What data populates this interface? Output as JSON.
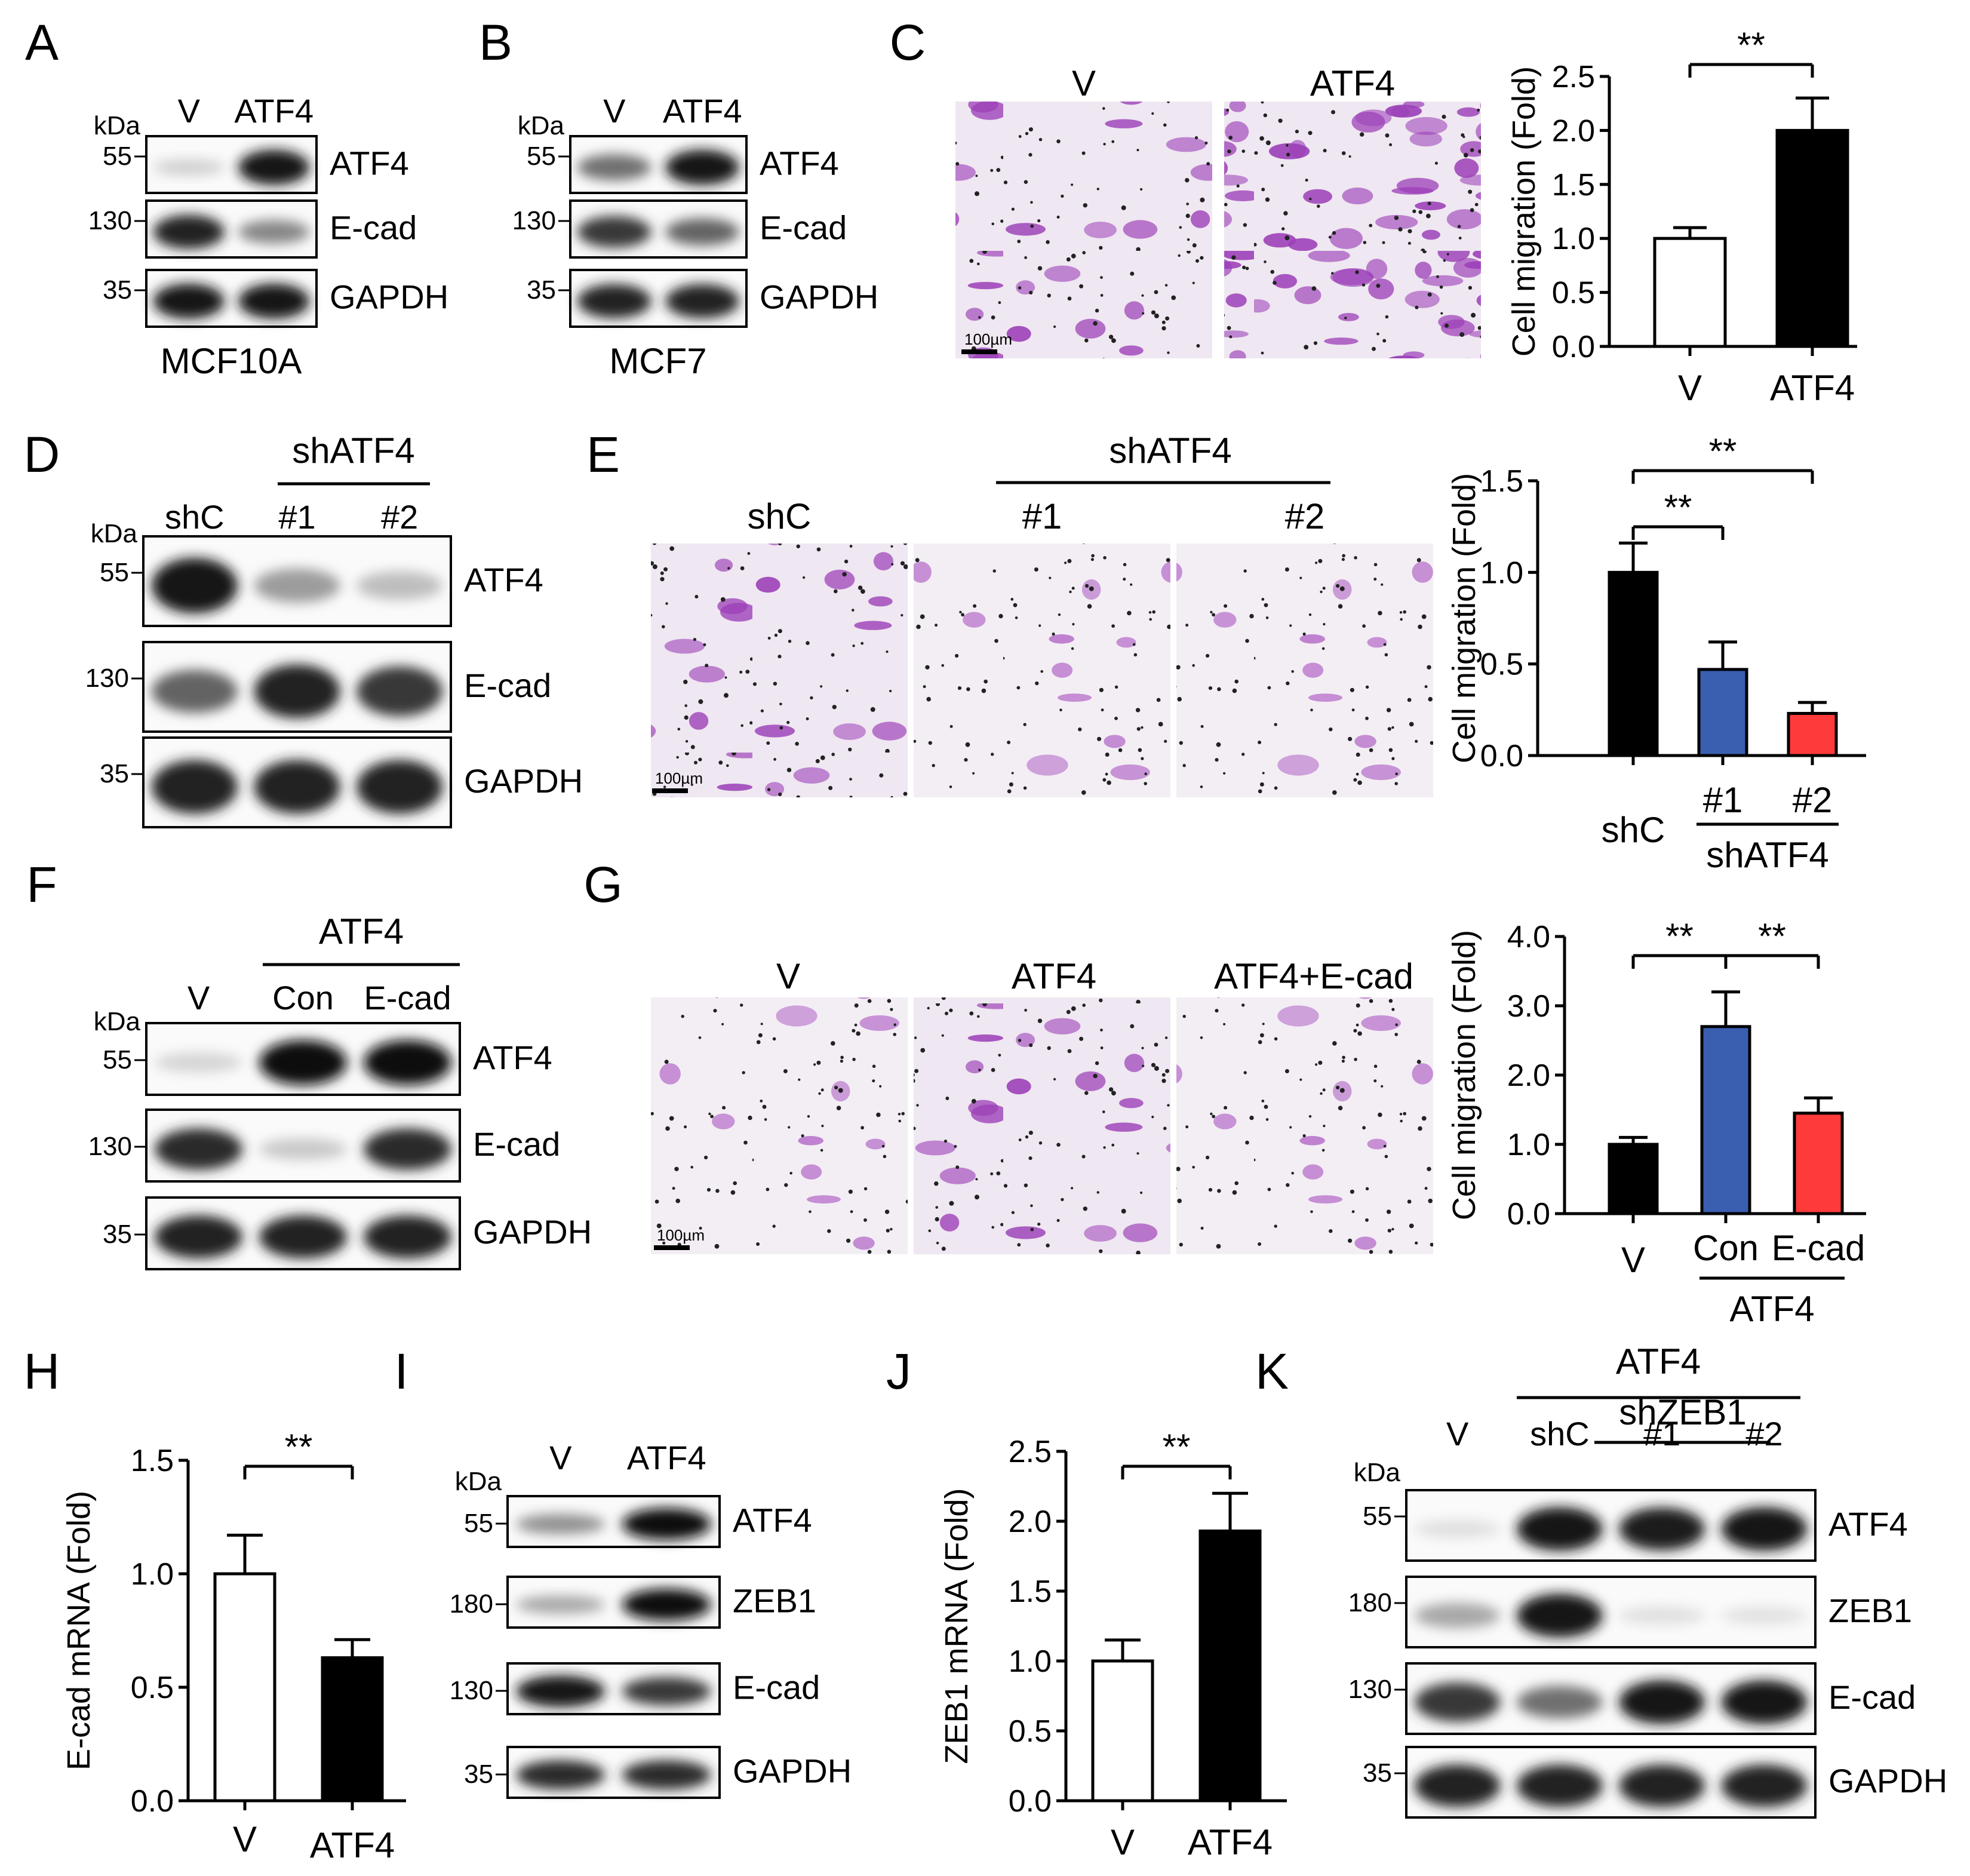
{
  "panels": {
    "A": "A",
    "B": "B",
    "C": "C",
    "D": "D",
    "E": "E",
    "F": "F",
    "G": "G",
    "H": "H",
    "I": "I",
    "J": "J",
    "K": "K"
  },
  "common": {
    "kda": "kDa",
    "sig": "**",
    "scale": "100µm",
    "fold_ylabel": "Cell migration (Fold)"
  },
  "A": {
    "lanes": [
      "V",
      "ATF4"
    ],
    "cell": "MCF10A",
    "rows": [
      {
        "label": "ATF4",
        "marker": "55"
      },
      {
        "label": "E-cad",
        "marker": "130"
      },
      {
        "label": "GAPDH",
        "marker": "35"
      }
    ],
    "intensity": [
      [
        0.12,
        0.95
      ],
      [
        0.9,
        0.45
      ],
      [
        0.95,
        0.95
      ]
    ]
  },
  "B": {
    "lanes": [
      "V",
      "ATF4"
    ],
    "cell": "MCF7",
    "rows": [
      {
        "label": "ATF4",
        "marker": "55"
      },
      {
        "label": "E-cad",
        "marker": "130"
      },
      {
        "label": "GAPDH",
        "marker": "35"
      }
    ],
    "intensity": [
      [
        0.55,
        0.95
      ],
      [
        0.8,
        0.6
      ],
      [
        0.9,
        0.9
      ]
    ]
  },
  "C": {
    "image_labels": [
      "V",
      "ATF4"
    ]
  },
  "D": {
    "lanes": [
      "shC",
      "#1",
      "#2"
    ],
    "group": "shATF4",
    "rows": [
      {
        "label": "ATF4",
        "marker": "55"
      },
      {
        "label": "E-cad",
        "marker": "130"
      },
      {
        "label": "GAPDH",
        "marker": "35"
      }
    ],
    "intensity": [
      [
        0.95,
        0.35,
        0.2
      ],
      [
        0.6,
        0.9,
        0.8
      ],
      [
        0.9,
        0.9,
        0.9
      ]
    ]
  },
  "E": {
    "group": "shATF4",
    "image_labels": [
      "shC",
      "#1",
      "#2"
    ]
  },
  "F": {
    "lanes": [
      "V",
      "Con",
      "E-cad"
    ],
    "group": "ATF4",
    "rows": [
      {
        "label": "ATF4",
        "marker": "55"
      },
      {
        "label": "E-cad",
        "marker": "130"
      },
      {
        "label": "GAPDH",
        "marker": "35"
      }
    ],
    "intensity": [
      [
        0.1,
        0.97,
        0.97
      ],
      [
        0.85,
        0.15,
        0.85
      ],
      [
        0.9,
        0.9,
        0.9
      ]
    ]
  },
  "G": {
    "image_labels": [
      "V",
      "ATF4",
      "ATF4+E-cad"
    ]
  },
  "I": {
    "lanes": [
      "V",
      "ATF4"
    ],
    "rows": [
      {
        "label": "ATF4",
        "marker": "55"
      },
      {
        "label": "ZEB1",
        "marker": "180"
      },
      {
        "label": "E-cad",
        "marker": "130"
      },
      {
        "label": "GAPDH",
        "marker": "35"
      }
    ],
    "intensity": [
      [
        0.4,
        0.97
      ],
      [
        0.3,
        0.97
      ],
      [
        0.95,
        0.8
      ],
      [
        0.85,
        0.85
      ]
    ]
  },
  "K": {
    "lanes": [
      "V",
      "shC",
      "#1",
      "#2"
    ],
    "group": "ATF4",
    "subgroup": "shZEB1",
    "rows": [
      {
        "label": "ATF4",
        "marker": "55"
      },
      {
        "label": "ZEB1",
        "marker": "180"
      },
      {
        "label": "E-cad",
        "marker": "130"
      },
      {
        "label": "GAPDH",
        "marker": "35"
      }
    ],
    "intensity": [
      [
        0.05,
        0.95,
        0.92,
        0.95
      ],
      [
        0.3,
        0.95,
        0.05,
        0.04
      ],
      [
        0.8,
        0.55,
        0.95,
        0.95
      ],
      [
        0.9,
        0.9,
        0.9,
        0.9
      ]
    ]
  },
  "chart_data": [
    {
      "panel": "C",
      "type": "bar",
      "categories": [
        "V",
        "ATF4"
      ],
      "values": [
        1.0,
        2.0
      ],
      "errors": [
        0.1,
        0.3
      ],
      "ylabel": "Cell migration (Fold)",
      "ylim": [
        0,
        2.5
      ],
      "yticks": [
        "0.0",
        "0.5",
        "1.0",
        "1.5",
        "2.0",
        "2.5"
      ],
      "colors": [
        "#ffffff",
        "#000000"
      ],
      "significance": [
        {
          "pair": [
            0,
            1
          ],
          "label": "**"
        }
      ]
    },
    {
      "panel": "E",
      "type": "bar",
      "categories": [
        "shC",
        "#1",
        "#2"
      ],
      "group_label": "shATF4",
      "group_span": [
        1,
        2
      ],
      "values": [
        1.0,
        0.47,
        0.23
      ],
      "errors": [
        0.16,
        0.15,
        0.06
      ],
      "ylabel": "Cell migration (Fold)",
      "ylim": [
        0,
        1.5
      ],
      "yticks": [
        "0.0",
        "0.5",
        "1.0",
        "1.5"
      ],
      "colors": [
        "#000000",
        "#3a5fb0",
        "#ff3a3a"
      ],
      "significance": [
        {
          "pair": [
            0,
            1
          ],
          "label": "**"
        },
        {
          "pair": [
            0,
            2
          ],
          "label": "**"
        }
      ]
    },
    {
      "panel": "G",
      "type": "bar",
      "categories": [
        "V",
        "Con",
        "E-cad"
      ],
      "group_label": "ATF4",
      "group_span": [
        1,
        2
      ],
      "values": [
        1.0,
        2.7,
        1.45
      ],
      "errors": [
        0.1,
        0.5,
        0.22
      ],
      "ylabel": "Cell migration (Fold)",
      "ylim": [
        0,
        4.0
      ],
      "yticks": [
        "0.0",
        "1.0",
        "2.0",
        "3.0",
        "4.0"
      ],
      "colors": [
        "#000000",
        "#3a5fb0",
        "#ff3a3a"
      ],
      "significance": [
        {
          "pair": [
            0,
            1
          ],
          "label": "**"
        },
        {
          "pair": [
            1,
            2
          ],
          "label": "**"
        }
      ]
    },
    {
      "panel": "H",
      "type": "bar",
      "categories": [
        "V",
        "ATF4"
      ],
      "values": [
        1.0,
        0.63
      ],
      "errors": [
        0.17,
        0.08
      ],
      "ylabel": "E-cad mRNA (Fold)",
      "ylim": [
        0,
        1.5
      ],
      "yticks": [
        "0.0",
        "0.5",
        "1.0",
        "1.5"
      ],
      "colors": [
        "#ffffff",
        "#000000"
      ],
      "significance": [
        {
          "pair": [
            0,
            1
          ],
          "label": "**"
        }
      ]
    },
    {
      "panel": "J",
      "type": "bar",
      "categories": [
        "V",
        "ATF4"
      ],
      "values": [
        1.0,
        1.93
      ],
      "errors": [
        0.15,
        0.27
      ],
      "ylabel": "ZEB1 mRNA (Fold)",
      "ylim": [
        0,
        2.5
      ],
      "yticks": [
        "0.0",
        "0.5",
        "1.0",
        "1.5",
        "2.0",
        "2.5"
      ],
      "colors": [
        "#ffffff",
        "#000000"
      ],
      "significance": [
        {
          "pair": [
            0,
            1
          ],
          "label": "**"
        }
      ]
    }
  ]
}
